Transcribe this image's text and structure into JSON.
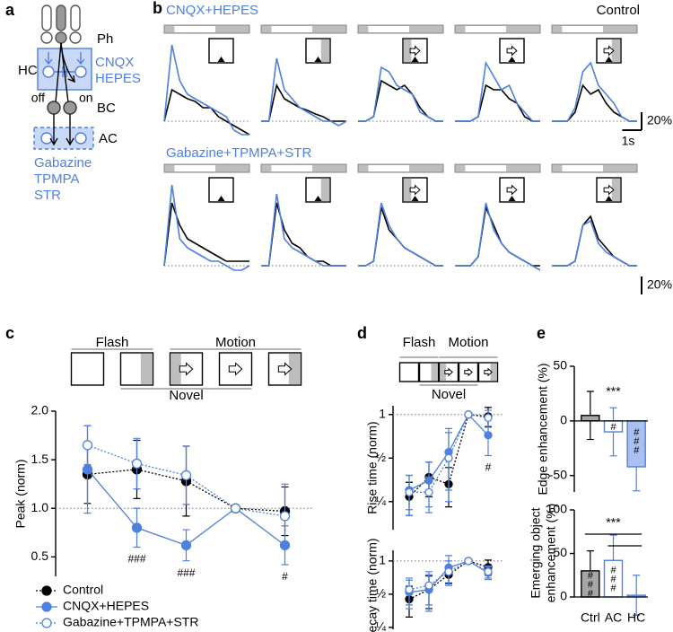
{
  "panel_a": {
    "label": "a",
    "labels": {
      "ph": "Ph",
      "hc": "HC",
      "cnqx": "CNQX",
      "hepes": "HEPES",
      "off": "off",
      "on": "on",
      "bc": "BC",
      "ac": "AC",
      "gabazine": "Gabazine",
      "tpmpa": "TPMPA",
      "str": "STR"
    }
  },
  "panel_b": {
    "label": "b",
    "row_titles": [
      "CNQX+HEPES",
      "Gabazine+TPMPA+STR"
    ],
    "control_label": "Control",
    "scale_y_label": "20%",
    "scale_x_label": "1s"
  },
  "panel_c": {
    "label": "c",
    "flash": "Flash",
    "motion": "Motion",
    "novel": "Novel"
  },
  "panel_d": {
    "label": "d",
    "flash": "Flash",
    "motion": "Motion",
    "novel": "Novel"
  },
  "panel_e": {
    "label": "e"
  },
  "chart_data": [
    {
      "type": "line",
      "x": [
        0,
        0.4,
        0.8,
        1.2,
        1.6,
        2.0,
        2.4,
        2.8,
        3.2,
        3.6,
        4.0,
        4.4
      ],
      "xlim": [
        0,
        4.4
      ],
      "ylim": [
        -20,
        90
      ],
      "series": [
        {
          "color": "#000000",
          "values": [
            0,
            35,
            30,
            25,
            22,
            15,
            15,
            5,
            0,
            -5,
            -10,
            -15
          ]
        },
        {
          "color": "#4f7fe0",
          "values": [
            0,
            85,
            45,
            30,
            25,
            20,
            15,
            10,
            5,
            -10,
            -15,
            -15
          ]
        }
      ]
    },
    {
      "type": "line",
      "x": [
        0,
        0.4,
        0.8,
        1.2,
        1.6,
        2.0,
        2.4,
        2.8,
        3.2,
        3.6,
        4.0,
        4.4
      ],
      "xlim": [
        0,
        4.4
      ],
      "ylim": [
        -20,
        90
      ],
      "series": [
        {
          "color": "#000000",
          "values": [
            0,
            0,
            40,
            25,
            20,
            15,
            12,
            8,
            5,
            0,
            0,
            0
          ]
        },
        {
          "color": "#4f7fe0",
          "values": [
            0,
            0,
            70,
            35,
            25,
            15,
            10,
            5,
            0,
            0,
            -5,
            0
          ]
        }
      ]
    },
    {
      "type": "line",
      "x": [
        0,
        0.4,
        0.8,
        1.2,
        1.6,
        2.0,
        2.4,
        2.8,
        3.2,
        3.6,
        4.0,
        4.4
      ],
      "xlim": [
        0,
        4.4
      ],
      "ylim": [
        -20,
        90
      ],
      "series": [
        {
          "color": "#000000",
          "values": [
            0,
            0,
            5,
            45,
            40,
            35,
            40,
            30,
            15,
            5,
            0,
            0
          ]
        },
        {
          "color": "#4f7fe0",
          "values": [
            0,
            0,
            5,
            60,
            55,
            40,
            35,
            30,
            10,
            5,
            0,
            0
          ]
        }
      ]
    },
    {
      "type": "line",
      "x": [
        0,
        0.4,
        0.8,
        1.2,
        1.6,
        2.0,
        2.4,
        2.8,
        3.2,
        3.6,
        4.0,
        4.4
      ],
      "xlim": [
        0,
        4.4
      ],
      "ylim": [
        -20,
        90
      ],
      "series": [
        {
          "color": "#000000",
          "values": [
            0,
            0,
            0,
            5,
            40,
            35,
            35,
            25,
            20,
            5,
            0,
            0
          ]
        },
        {
          "color": "#4f7fe0",
          "values": [
            0,
            0,
            0,
            5,
            65,
            50,
            35,
            40,
            20,
            10,
            0,
            0
          ]
        }
      ]
    },
    {
      "type": "line",
      "x": [
        0,
        0.4,
        0.8,
        1.2,
        1.6,
        2.0,
        2.4,
        2.8,
        3.2,
        3.6,
        4.0,
        4.4
      ],
      "xlim": [
        0,
        4.4
      ],
      "ylim": [
        -20,
        90
      ],
      "series": [
        {
          "color": "#000000",
          "values": [
            0,
            0,
            0,
            10,
            40,
            30,
            35,
            20,
            10,
            5,
            0,
            0
          ]
        },
        {
          "color": "#4f7fe0",
          "values": [
            0,
            0,
            0,
            15,
            55,
            65,
            40,
            30,
            20,
            5,
            0,
            0
          ]
        }
      ]
    },
    {
      "type": "line",
      "x": [
        0,
        0.4,
        0.8,
        1.2,
        1.6,
        2.0,
        2.4,
        2.8,
        3.2,
        3.6,
        4.0,
        4.4
      ],
      "xlim": [
        0,
        4.4
      ],
      "ylim": [
        -20,
        90
      ],
      "series": [
        {
          "color": "#000000",
          "values": [
            0,
            70,
            45,
            30,
            25,
            20,
            15,
            10,
            5,
            5,
            5,
            5
          ]
        },
        {
          "color": "#4f7fe0",
          "values": [
            0,
            90,
            30,
            20,
            15,
            10,
            5,
            5,
            0,
            -5,
            -5,
            0
          ]
        }
      ]
    },
    {
      "type": "line",
      "x": [
        0,
        0.4,
        0.8,
        1.2,
        1.6,
        2.0,
        2.4,
        2.8,
        3.2,
        3.6,
        4.0,
        4.4
      ],
      "xlim": [
        0,
        4.4
      ],
      "ylim": [
        -20,
        90
      ],
      "series": [
        {
          "color": "#000000",
          "values": [
            0,
            0,
            70,
            40,
            25,
            20,
            10,
            5,
            5,
            0,
            0,
            0
          ]
        },
        {
          "color": "#4f7fe0",
          "values": [
            0,
            0,
            80,
            30,
            20,
            15,
            10,
            5,
            0,
            0,
            0,
            0
          ]
        }
      ]
    },
    {
      "type": "line",
      "x": [
        0,
        0.4,
        0.8,
        1.2,
        1.6,
        2.0,
        2.4,
        2.8,
        3.2,
        3.6,
        4.0,
        4.4
      ],
      "xlim": [
        0,
        4.4
      ],
      "ylim": [
        -20,
        90
      ],
      "series": [
        {
          "color": "#000000",
          "values": [
            0,
            0,
            5,
            65,
            40,
            30,
            20,
            15,
            10,
            5,
            0,
            0
          ]
        },
        {
          "color": "#4f7fe0",
          "values": [
            0,
            0,
            5,
            70,
            45,
            30,
            20,
            15,
            10,
            5,
            0,
            0
          ]
        }
      ]
    },
    {
      "type": "line",
      "x": [
        0,
        0.4,
        0.8,
        1.2,
        1.6,
        2.0,
        2.4,
        2.8,
        3.2,
        3.6,
        4.0,
        4.4
      ],
      "xlim": [
        0,
        4.4
      ],
      "ylim": [
        -20,
        90
      ],
      "series": [
        {
          "color": "#000000",
          "values": [
            0,
            0,
            0,
            10,
            65,
            45,
            25,
            15,
            10,
            5,
            0,
            0
          ]
        },
        {
          "color": "#4f7fe0",
          "values": [
            0,
            0,
            0,
            10,
            70,
            40,
            25,
            15,
            10,
            5,
            0,
            -5
          ]
        }
      ]
    },
    {
      "type": "line",
      "x": [
        0,
        0.4,
        0.8,
        1.2,
        1.6,
        2.0,
        2.4,
        2.8,
        3.2,
        3.6,
        4.0,
        4.4
      ],
      "xlim": [
        0,
        4.4
      ],
      "ylim": [
        -20,
        90
      ],
      "series": [
        {
          "color": "#000000",
          "values": [
            0,
            0,
            0,
            5,
            45,
            55,
            30,
            20,
            10,
            5,
            0,
            0
          ]
        },
        {
          "color": "#4f7fe0",
          "values": [
            0,
            0,
            0,
            5,
            45,
            50,
            25,
            15,
            10,
            5,
            0,
            0
          ]
        }
      ]
    },
    {
      "type": "line",
      "ylabel": "Peak (norm)",
      "categories": [
        null,
        null,
        null,
        null,
        null
      ],
      "ylim": [
        0.3,
        2.0
      ],
      "yticks": [
        0.5,
        {
          "value": 1,
          "label": "1.0"
        },
        1.5,
        {
          "value": 2,
          "label": "2.0"
        }
      ],
      "hline": 1,
      "legend": true,
      "series": [
        {
          "name": "Control",
          "color": "#000000",
          "marker": "filled",
          "dash": true,
          "values": [
            1.35,
            1.4,
            1.28,
            1.0,
            0.97
          ],
          "errors": [
            0.3,
            0.3,
            0.36,
            0,
            0.25
          ]
        },
        {
          "name": "CNQX+HEPES",
          "color": "#4f7fe0",
          "marker": "filled",
          "dash": false,
          "values": [
            1.4,
            0.8,
            0.62,
            1.0,
            0.62
          ],
          "errors": [
            0.45,
            0.2,
            0.16,
            0,
            0.2
          ],
          "marks": [
            null,
            "###",
            "###",
            null,
            "#"
          ]
        },
        {
          "name": "Gabazine+TPMPA+STR",
          "color": "#4f7fe0",
          "marker": "open",
          "dash": true,
          "values": [
            1.65,
            1.46,
            1.34,
            1.0,
            0.92
          ],
          "errors": [
            0.2,
            0.26,
            0.3,
            0,
            0.33
          ]
        }
      ]
    },
    {
      "type": "line",
      "ylabel": "Rise time (norm)",
      "categories": [
        null,
        null,
        null,
        null,
        null
      ],
      "log_scale": true,
      "ylim": [
        0.16,
        1.15
      ],
      "yticks": [
        {
          "value": 0.25,
          "label": "¼"
        },
        {
          "value": 0.5,
          "label": "½"
        },
        1
      ],
      "hline": 1,
      "series": [
        {
          "color": "#000000",
          "marker": "filled",
          "dash": true,
          "values": [
            0.27,
            0.37,
            0.33,
            1.0,
            0.97
          ],
          "errors": [
            0.07,
            0.1,
            0.1,
            0,
            0.15
          ]
        },
        {
          "color": "#4f7fe0",
          "marker": "filled",
          "dash": false,
          "values": [
            0.3,
            0.35,
            0.55,
            1.0,
            0.72
          ],
          "errors": [
            0.08,
            0.12,
            0.25,
            0,
            0.2
          ],
          "marks": [
            null,
            null,
            null,
            null,
            "#"
          ]
        },
        {
          "color": "#4f7fe0",
          "marker": "open",
          "dash": true,
          "values": [
            0.29,
            0.29,
            0.5,
            1.0,
            0.95
          ],
          "errors": [
            0.09,
            0.08,
            0.25,
            0,
            0.12
          ]
        }
      ]
    },
    {
      "type": "line",
      "ylabel": "Decay time (norm)",
      "categories": [
        null,
        null,
        null,
        null,
        null
      ],
      "log_scale": true,
      "ylim": [
        0.24,
        1.25
      ],
      "yticks": [
        {
          "value": 0.25,
          "label": "¼"
        },
        {
          "value": 0.5,
          "label": "½"
        },
        1
      ],
      "hline": 1,
      "series": [
        {
          "color": "#000000",
          "marker": "filled",
          "dash": true,
          "values": [
            0.45,
            0.55,
            0.75,
            1.0,
            0.88
          ],
          "errors": [
            0.14,
            0.18,
            0.12,
            0,
            0.14
          ]
        },
        {
          "color": "#4f7fe0",
          "marker": "filled",
          "dash": false,
          "values": [
            0.52,
            0.55,
            0.87,
            1.0,
            0.78
          ],
          "errors": [
            0.15,
            0.2,
            0.25,
            0,
            0.1
          ]
        },
        {
          "color": "#4f7fe0",
          "marker": "open",
          "dash": true,
          "values": [
            0.55,
            0.6,
            0.8,
            1.0,
            0.8
          ],
          "errors": [
            0.15,
            0.2,
            0.2,
            0,
            0.1
          ]
        }
      ]
    },
    {
      "type": "bar",
      "ylabel": "Edge enhancement (%)",
      "categories": [
        null,
        null,
        null
      ],
      "values": [
        5,
        -10,
        -42
      ],
      "errors": [
        22,
        22,
        22
      ],
      "colors": [
        "#a6a6a6",
        "#ffffff",
        "#a9c0f0"
      ],
      "edgecolors": [
        "#000000",
        "#4f7fe0",
        "#4f7fe0"
      ],
      "marks": [
        null,
        "#",
        "###"
      ],
      "ylim": [
        -65,
        50
      ],
      "yticks": [
        -50,
        0,
        50
      ],
      "sig": "***"
    },
    {
      "type": "bar",
      "ylabel": [
        "Emerging object",
        "enhancement (%)"
      ],
      "categories": [
        "Ctrl",
        "AC",
        "HC"
      ],
      "values": [
        30,
        42,
        2
      ],
      "errors": [
        23,
        29,
        23
      ],
      "colors": [
        "#a6a6a6",
        "#ffffff",
        "#a9c0f0"
      ],
      "edgecolors": [
        "#000000",
        "#4f7fe0",
        "#4f7fe0"
      ],
      "marks": [
        "###",
        "###",
        null
      ],
      "ylim": [
        0,
        100
      ],
      "yticks": [
        0,
        50,
        100
      ],
      "sig": "***"
    }
  ]
}
